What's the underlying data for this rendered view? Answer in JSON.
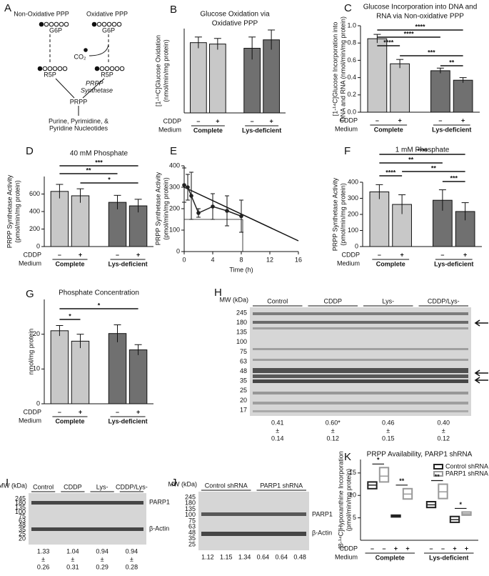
{
  "panel_labels": [
    "A",
    "B",
    "C",
    "D",
    "E",
    "F",
    "G",
    "H",
    "I",
    "J",
    "K"
  ],
  "diagram": {
    "left_title": "Non-Oxidative PPP",
    "right_title": "Oxidative PPP",
    "left_g6p": "G6P",
    "right_g6p": "G6P",
    "co2": "CO₂",
    "left_r5p": "R5P",
    "right_r5p": "R5P",
    "enzyme": [
      "PRPP",
      "Synthetase"
    ],
    "prpp": "PRPP",
    "products": [
      "Purine, Pyrimidine, &",
      "Pyridine Nucleotides"
    ]
  },
  "chart_data": [
    {
      "type": "bar",
      "title": [
        "Glucose Oxidation via",
        "Oxidative PPP"
      ],
      "ylabel": [
        "[1-¹⁴C]Glucose Oxidation",
        "(nmol/min/mg protein)"
      ],
      "categories": [
        "–",
        "+",
        "–",
        "+"
      ],
      "groups": [
        "Complete",
        "Lys-deficient"
      ],
      "cddp_label": "CDDP",
      "medium_label": "Medium",
      "values": [
        0.25,
        0.245,
        0.23,
        0.26
      ],
      "errors": [
        0.02,
        0.02,
        0.04,
        0.035
      ],
      "colors": [
        "#c8c8c8",
        "#c8c8c8",
        "#707070",
        "#707070"
      ],
      "ylim": [
        0,
        0.3
      ],
      "annotations": []
    },
    {
      "type": "bar",
      "title": [
        "Glucose Incorporation into DNA and",
        "RNA via Non-oxidative PPP"
      ],
      "ylabel": [
        "[1-¹⁴C]Glucose Incorporation into",
        "DNA and RNA (nmol/min/mg protein)"
      ],
      "categories": [
        "–",
        "+",
        "–",
        "+"
      ],
      "groups": [
        "Complete",
        "Lys-deficient"
      ],
      "cddp_label": "CDDP",
      "medium_label": "Medium",
      "values": [
        0.85,
        0.56,
        0.48,
        0.37
      ],
      "errors": [
        0.05,
        0.05,
        0.03,
        0.03
      ],
      "colors": [
        "#c8c8c8",
        "#c8c8c8",
        "#707070",
        "#707070"
      ],
      "ylim": [
        0,
        1.0
      ],
      "yticks": [
        {
          "value": 0,
          "label": "0.0"
        },
        {
          "value": 0.2,
          "label": "0.2"
        },
        {
          "value": 0.4,
          "label": "0.4"
        },
        {
          "value": 0.6,
          "label": "0.6"
        },
        {
          "value": 0.8,
          "label": "0.8"
        },
        {
          "value": 1.0,
          "label": "1.0"
        }
      ],
      "annotations": [
        "****",
        "****",
        "****",
        "***",
        "**"
      ]
    },
    {
      "type": "bar",
      "title": [
        "40 mM Phosphate"
      ],
      "ylabel": [
        "PRPP Synthetase Activity",
        "(pmol/min/mg protein)"
      ],
      "categories": [
        "–",
        "+",
        "–",
        "+"
      ],
      "groups": [
        "Complete",
        "Lys-deficient"
      ],
      "cddp_label": "CDDP",
      "medium_label": "Medium",
      "values": [
        630,
        580,
        505,
        465
      ],
      "errors": [
        80,
        80,
        80,
        75
      ],
      "colors": [
        "#c8c8c8",
        "#c8c8c8",
        "#707070",
        "#707070"
      ],
      "ylim": [
        0,
        800
      ],
      "yticks": [
        0,
        200,
        400,
        600
      ],
      "annotations": [
        "***",
        "**",
        "*"
      ]
    },
    {
      "type": "line",
      "ylabel": [
        "PRPP Synthetase Activity",
        "(pmol/min/mg protein)"
      ],
      "xlabel": "Time (h)",
      "x": [
        0,
        0.5,
        1,
        2,
        4,
        6,
        8
      ],
      "values": [
        310,
        300,
        260,
        180,
        210,
        190,
        165
      ],
      "errors": [
        80,
        60,
        110,
        20,
        60,
        70,
        75
      ],
      "fit_x": [
        0,
        16
      ],
      "fit_y": [
        300,
        50
      ],
      "half_life": {
        "x": 8.2,
        "y": 150
      },
      "xlim": [
        0,
        16
      ],
      "xticks": [
        0,
        4,
        8,
        12,
        16
      ],
      "ylim": [
        0,
        400
      ],
      "yticks": [
        0,
        100,
        200,
        300,
        400
      ],
      "color": "#222222"
    },
    {
      "type": "bar",
      "title": [
        "1 mM Phosphate"
      ],
      "ylabel": [
        "PRPP Synthetase Activity",
        "(pmol/min/mg protein)"
      ],
      "categories": [
        "–",
        "+",
        "–",
        "+"
      ],
      "groups": [
        "Complete",
        "Lys-deficient"
      ],
      "cddp_label": "CDDP",
      "medium_label": "Medium",
      "values": [
        340,
        262,
        288,
        218
      ],
      "errors": [
        45,
        60,
        65,
        55
      ],
      "colors": [
        "#c8c8c8",
        "#c8c8c8",
        "#707070",
        "#707070"
      ],
      "ylim": [
        0,
        400
      ],
      "yticks": [
        0,
        100,
        200,
        300,
        400
      ],
      "annotations": [
        "****",
        "**",
        "****",
        "**",
        "***"
      ]
    },
    {
      "type": "bar",
      "title": [
        "Phosphate Concentration"
      ],
      "ylabel": [
        "nmol/mg protein"
      ],
      "categories": [
        "–",
        "+",
        "–",
        "+"
      ],
      "groups": [
        "Complete",
        "Lys-deficient"
      ],
      "cddp_label": "CDDP",
      "medium_label": "Medium",
      "values": [
        21,
        18,
        20.2,
        15.5
      ],
      "errors": [
        1.5,
        2,
        2.5,
        1.5
      ],
      "colors": [
        "#c8c8c8",
        "#c8c8c8",
        "#707070",
        "#707070"
      ],
      "ylim": [
        0,
        30
      ],
      "yticks": [
        0,
        10,
        20
      ],
      "annotations": [
        "*",
        "*"
      ]
    },
    {
      "type": "box",
      "title": [
        "PRPP Availability, PARP1 shRNA"
      ],
      "ylabel": [
        "[8-¹⁴C]Hypoxanthine Incorporation",
        "(pmol/min/mg protein)"
      ],
      "categories": [
        "–",
        "–",
        "+",
        "+",
        "–",
        "–",
        "+",
        "+"
      ],
      "groups": [
        "Complete",
        "Lys-deficient"
      ],
      "cddp_label": "CDDP",
      "medium_label": "Medium",
      "series": [
        {
          "name": "Control shRNA",
          "color": "#222222",
          "low": [
            11.5,
            5.2,
            7.3,
            4.0
          ],
          "values": [
            12.3,
            5.4,
            7.9,
            4.6
          ],
          "high": [
            13.0,
            5.6,
            8.6,
            5.3
          ]
        },
        {
          "name": "PARP1 shRNA",
          "color": "#999999",
          "low": [
            13.0,
            9.2,
            9.3,
            5.6
          ],
          "values": [
            14.3,
            10.3,
            10.8,
            5.9
          ],
          "high": [
            16.2,
            11.5,
            12.5,
            6.3
          ]
        }
      ],
      "ylim": [
        0,
        18
      ],
      "yticks": [
        5,
        10,
        15
      ],
      "annotations": [
        "*",
        "**",
        "**",
        "*"
      ],
      "legend": "upper-right"
    }
  ],
  "blot_h": {
    "mw_title": "MW (kDa)",
    "markers": [
      "245",
      "180",
      "135",
      "100",
      "75",
      "63",
      "48",
      "35",
      "25",
      "20",
      "17"
    ],
    "lanes": [
      "Control",
      "CDDP",
      "Lys-",
      "CDDP/Lys-"
    ],
    "quant": [
      {
        "mean": "0.41",
        "pm": "±",
        "sd": "0.14"
      },
      {
        "mean": "0.60*",
        "pm": "±",
        "sd": "0.12"
      },
      {
        "mean": "0.46",
        "pm": "±",
        "sd": "0.15"
      },
      {
        "mean": "0.40",
        "pm": "±",
        "sd": "0.12"
      }
    ]
  },
  "blot_i": {
    "mw_title": "MW (kDa)",
    "markers": [
      "245",
      "180",
      "135",
      "100",
      "75",
      "63",
      "48",
      "35",
      "25",
      "20"
    ],
    "lanes": [
      "Control",
      "CDDP",
      "Lys-",
      "CDDP/Lys-"
    ],
    "bands": [
      "PARP1",
      "β-Actin"
    ],
    "quant": [
      {
        "mean": "1.33",
        "pm": "±",
        "sd": "0.26"
      },
      {
        "mean": "1.04",
        "pm": "±",
        "sd": "0.31"
      },
      {
        "mean": "0.94",
        "pm": "±",
        "sd": "0.29"
      },
      {
        "mean": "0.94",
        "pm": "±",
        "sd": "0.28"
      }
    ]
  },
  "blot_j": {
    "mw_title": "MW (kDa)",
    "markers": [
      "245",
      "180",
      "135",
      "100",
      "75",
      "63",
      "48",
      "35",
      "25"
    ],
    "lanes": [
      "Control shRNA",
      "PARP1 shRNA"
    ],
    "bands": [
      "PARP1",
      "β-Actin"
    ],
    "quant": [
      "1.12",
      "1.15",
      "1.34",
      "0.64",
      "0.64",
      "0.48"
    ]
  }
}
